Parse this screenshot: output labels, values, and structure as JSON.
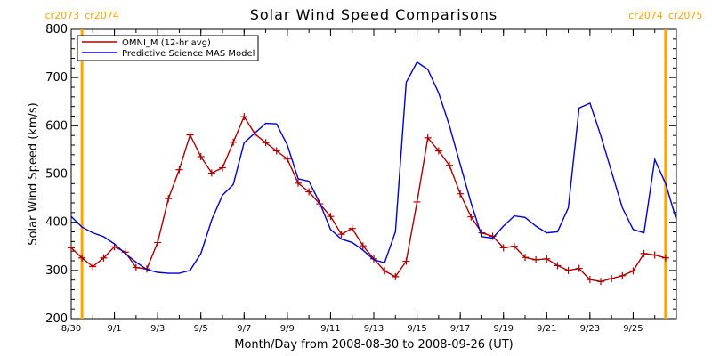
{
  "chart_data": {
    "type": "line",
    "title": "Solar Wind Speed Comparisons",
    "xlabel": "Month/Day from 2008-08-30 to 2008-09-26 (UT)",
    "ylabel": "Solar Wind Speed (km/s)",
    "xlim": [
      "2008-08-30",
      "2008-09-27"
    ],
    "ylim": [
      200,
      800
    ],
    "x_ticks": [
      "2008-08-30",
      "2008-09-01",
      "2008-09-03",
      "2008-09-05",
      "2008-09-07",
      "2008-09-09",
      "2008-09-11",
      "2008-09-13",
      "2008-09-15",
      "2008-09-17",
      "2008-09-19",
      "2008-09-21",
      "2008-09-23",
      "2008-09-25"
    ],
    "x_tick_labels": [
      "8/30",
      "9/1",
      "9/3",
      "9/5",
      "9/7",
      "9/9",
      "9/11",
      "9/13",
      "9/15",
      "9/17",
      "9/19",
      "9/21",
      "9/23",
      "9/25"
    ],
    "y_ticks": [
      200,
      300,
      400,
      500,
      600,
      700,
      800
    ],
    "y_tick_labels": [
      "200",
      "300",
      "400",
      "500",
      "600",
      "700",
      "800"
    ],
    "legend_position": "top-left",
    "grid": false,
    "series": [
      {
        "name": "OMNI_M (12-hr avg)",
        "color": "#aa0000",
        "marker": "plus",
        "points": [
          [
            "2008-08-30T00:00",
            347
          ],
          [
            "2008-08-30T12:00",
            326
          ],
          [
            "2008-08-31T00:00",
            308
          ],
          [
            "2008-08-31T12:00",
            326
          ],
          [
            "2008-09-01T00:00",
            349
          ],
          [
            "2008-09-01T12:00",
            338
          ],
          [
            "2008-09-02T00:00",
            306
          ],
          [
            "2008-09-02T12:00",
            303
          ],
          [
            "2008-09-03T00:00",
            358
          ],
          [
            "2008-09-03T12:00",
            449
          ],
          [
            "2008-09-04T00:00",
            509
          ],
          [
            "2008-09-04T12:00",
            581
          ],
          [
            "2008-09-05T00:00",
            536
          ],
          [
            "2008-09-05T12:00",
            502
          ],
          [
            "2008-09-06T00:00",
            513
          ],
          [
            "2008-09-06T12:00",
            566
          ],
          [
            "2008-09-07T00:00",
            619
          ],
          [
            "2008-09-07T12:00",
            583
          ],
          [
            "2008-09-08T00:00",
            565
          ],
          [
            "2008-09-08T12:00",
            548
          ],
          [
            "2008-09-09T00:00",
            531
          ],
          [
            "2008-09-09T12:00",
            481
          ],
          [
            "2008-09-10T00:00",
            463
          ],
          [
            "2008-09-10T12:00",
            438
          ],
          [
            "2008-09-11T00:00",
            412
          ],
          [
            "2008-09-11T12:00",
            375
          ],
          [
            "2008-09-12T00:00",
            387
          ],
          [
            "2008-09-12T12:00",
            351
          ],
          [
            "2008-09-13T00:00",
            324
          ],
          [
            "2008-09-13T12:00",
            299
          ],
          [
            "2008-09-14T00:00",
            287
          ],
          [
            "2008-09-14T12:00",
            319
          ],
          [
            "2008-09-15T00:00",
            442
          ],
          [
            "2008-09-15T12:00",
            575
          ],
          [
            "2008-09-16T00:00",
            548
          ],
          [
            "2008-09-16T12:00",
            518
          ],
          [
            "2008-09-17T00:00",
            459
          ],
          [
            "2008-09-17T12:00",
            411
          ],
          [
            "2008-09-18T00:00",
            378
          ],
          [
            "2008-09-18T12:00",
            371
          ],
          [
            "2008-09-19T00:00",
            347
          ],
          [
            "2008-09-19T12:00",
            350
          ],
          [
            "2008-09-20T00:00",
            327
          ],
          [
            "2008-09-20T12:00",
            322
          ],
          [
            "2008-09-21T00:00",
            324
          ],
          [
            "2008-09-21T12:00",
            310
          ],
          [
            "2008-09-22T00:00",
            300
          ],
          [
            "2008-09-22T12:00",
            304
          ],
          [
            "2008-09-23T00:00",
            281
          ],
          [
            "2008-09-23T12:00",
            277
          ],
          [
            "2008-09-24T00:00",
            283
          ],
          [
            "2008-09-24T12:00",
            289
          ],
          [
            "2008-09-25T00:00",
            299
          ],
          [
            "2008-09-25T12:00",
            335
          ],
          [
            "2008-09-26T00:00",
            332
          ],
          [
            "2008-09-26T12:00",
            326
          ]
        ]
      },
      {
        "name": "Predictive Science MAS Model",
        "color": "#0000cc",
        "marker": "none",
        "points": [
          [
            "2008-08-30T00:00",
            412
          ],
          [
            "2008-08-30T12:00",
            390
          ],
          [
            "2008-08-31T00:00",
            378
          ],
          [
            "2008-08-31T12:00",
            370
          ],
          [
            "2008-09-01T00:00",
            355
          ],
          [
            "2008-09-01T12:00",
            335
          ],
          [
            "2008-09-02T00:00",
            317
          ],
          [
            "2008-09-02T12:00",
            302
          ],
          [
            "2008-09-03T00:00",
            296
          ],
          [
            "2008-09-03T12:00",
            294
          ],
          [
            "2008-09-04T00:00",
            294
          ],
          [
            "2008-09-04T12:00",
            300
          ],
          [
            "2008-09-05T00:00",
            335
          ],
          [
            "2008-09-05T12:00",
            405
          ],
          [
            "2008-09-06T00:00",
            456
          ],
          [
            "2008-09-06T12:00",
            478
          ],
          [
            "2008-09-07T00:00",
            565
          ],
          [
            "2008-09-07T12:00",
            585
          ],
          [
            "2008-09-08T00:00",
            605
          ],
          [
            "2008-09-08T12:00",
            604
          ],
          [
            "2008-09-09T00:00",
            560
          ],
          [
            "2008-09-09T12:00",
            490
          ],
          [
            "2008-09-10T00:00",
            485
          ],
          [
            "2008-09-10T12:00",
            440
          ],
          [
            "2008-09-11T00:00",
            385
          ],
          [
            "2008-09-11T12:00",
            365
          ],
          [
            "2008-09-12T00:00",
            358
          ],
          [
            "2008-09-12T12:00",
            342
          ],
          [
            "2008-09-13T00:00",
            322
          ],
          [
            "2008-09-13T12:00",
            316
          ],
          [
            "2008-09-14T00:00",
            380
          ],
          [
            "2008-09-14T12:00",
            690
          ],
          [
            "2008-09-15T00:00",
            732
          ],
          [
            "2008-09-15T12:00",
            717
          ],
          [
            "2008-09-16T00:00",
            668
          ],
          [
            "2008-09-16T12:00",
            600
          ],
          [
            "2008-09-17T00:00",
            520
          ],
          [
            "2008-09-17T12:00",
            440
          ],
          [
            "2008-09-18T00:00",
            370
          ],
          [
            "2008-09-18T12:00",
            367
          ],
          [
            "2008-09-19T00:00",
            392
          ],
          [
            "2008-09-19T12:00",
            413
          ],
          [
            "2008-09-20T00:00",
            410
          ],
          [
            "2008-09-20T12:00",
            392
          ],
          [
            "2008-09-21T00:00",
            378
          ],
          [
            "2008-09-21T12:00",
            380
          ],
          [
            "2008-09-22T00:00",
            430
          ],
          [
            "2008-09-22T12:00",
            637
          ],
          [
            "2008-09-23T00:00",
            647
          ],
          [
            "2008-09-23T12:00",
            580
          ],
          [
            "2008-09-24T00:00",
            505
          ],
          [
            "2008-09-24T12:00",
            430
          ],
          [
            "2008-09-25T00:00",
            385
          ],
          [
            "2008-09-25T12:00",
            378
          ],
          [
            "2008-09-26T00:00",
            530
          ],
          [
            "2008-09-26T12:00",
            480
          ],
          [
            "2008-09-27T00:00",
            405
          ]
        ]
      }
    ],
    "carrington_markers": [
      {
        "date": "2008-08-30T12:00",
        "label_left": "cr2073",
        "label_right": "cr2074",
        "color": "#ffa500"
      },
      {
        "date": "2008-09-26T12:00",
        "label_left": "cr2074",
        "label_right": "cr2075",
        "color": "#ffa500"
      }
    ]
  }
}
